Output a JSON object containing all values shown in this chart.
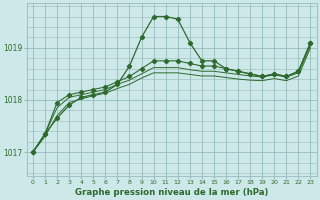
{
  "title": "Graphe pression niveau de la mer (hPa)",
  "bg_color": "#cce8e8",
  "grid_color": "#99bbbb",
  "line_color": "#2d6a2d",
  "x_labels": [
    "0",
    "1",
    "2",
    "3",
    "4",
    "5",
    "6",
    "7",
    "8",
    "9",
    "10",
    "11",
    "12",
    "13",
    "14",
    "15",
    "16",
    "17",
    "18",
    "19",
    "20",
    "21",
    "22",
    "23"
  ],
  "ylim": [
    1016.55,
    1019.85
  ],
  "yticks": [
    1017,
    1018,
    1019
  ],
  "series": {
    "main": [
      1017.0,
      1017.35,
      1017.65,
      1017.9,
      1018.05,
      1018.1,
      1018.15,
      1018.3,
      1018.65,
      1019.2,
      1019.6,
      1019.6,
      1019.55,
      1019.1,
      1018.75,
      1018.75,
      1018.6,
      1018.55,
      1018.5,
      1018.45,
      1018.5,
      1018.45,
      1018.55,
      1019.1
    ],
    "line2": [
      1017.0,
      1017.35,
      1017.95,
      1018.1,
      1018.15,
      1018.2,
      1018.25,
      1018.35,
      1018.45,
      1018.6,
      1018.75,
      1018.75,
      1018.75,
      1018.7,
      1018.65,
      1018.65,
      1018.6,
      1018.55,
      1018.5,
      1018.45,
      1018.5,
      1018.45,
      1018.55,
      1019.1
    ],
    "line3": [
      1017.0,
      1017.35,
      1017.85,
      1018.05,
      1018.1,
      1018.15,
      1018.2,
      1018.3,
      1018.38,
      1018.5,
      1018.62,
      1018.62,
      1018.62,
      1018.58,
      1018.55,
      1018.55,
      1018.52,
      1018.49,
      1018.46,
      1018.44,
      1018.48,
      1018.44,
      1018.52,
      1019.05
    ],
    "line4": [
      1017.0,
      1017.3,
      1017.7,
      1017.95,
      1018.02,
      1018.08,
      1018.13,
      1018.22,
      1018.3,
      1018.42,
      1018.52,
      1018.52,
      1018.52,
      1018.49,
      1018.46,
      1018.46,
      1018.43,
      1018.4,
      1018.38,
      1018.37,
      1018.41,
      1018.37,
      1018.46,
      1019.0
    ]
  }
}
